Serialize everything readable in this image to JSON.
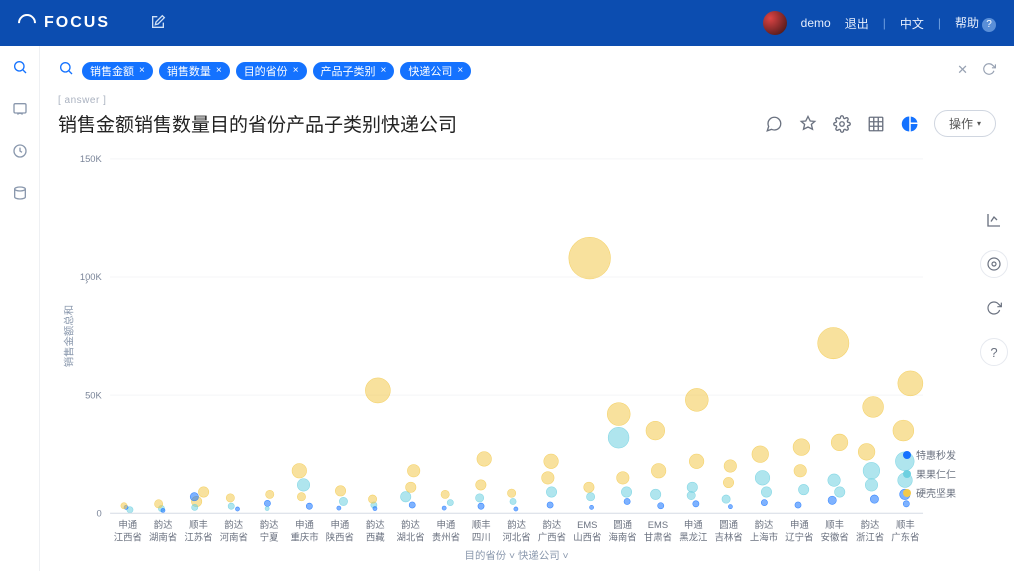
{
  "header": {
    "brand": "FOCUS",
    "user": "demo",
    "logout": "退出",
    "lang": "中文",
    "help": "帮助"
  },
  "search": {
    "pills": [
      "销售金额",
      "销售数量",
      "目的省份",
      "产品子类别",
      "快递公司"
    ],
    "breadcrumb": "[ answer ]"
  },
  "title": "销售金额销售数量目的省份产品子类别快递公司",
  "ops_label": "操作",
  "chart": {
    "type": "scatter",
    "y_axis_label": "销售金额总和",
    "x_axis_label_1": "目的省份",
    "x_axis_label_2": "快递公司",
    "ylim": [
      0,
      150000
    ],
    "yticks": [
      0,
      50000,
      100000,
      150000
    ],
    "ytick_labels": [
      "0",
      "50K",
      "100K",
      "150K"
    ],
    "background_color": "#ffffff",
    "grid_color": "#f0f2f5",
    "series": [
      {
        "name": "特惠秒发",
        "color": "#1472ff"
      },
      {
        "name": "果果仁仁",
        "color": "#6ed0e0"
      },
      {
        "name": "硬壳坚果",
        "color": "#f2c94c"
      }
    ],
    "categories": [
      {
        "province": "江西省",
        "shippers": [
          "申通"
        ]
      },
      {
        "province": "湖南省",
        "shippers": [
          "韵达"
        ]
      },
      {
        "province": "江苏省",
        "shippers": [
          "顺丰"
        ]
      },
      {
        "province": "河南省",
        "shippers": [
          "韵达"
        ]
      },
      {
        "province": "宁夏",
        "shippers": [
          "韵达"
        ]
      },
      {
        "province": "重庆市",
        "shippers": [
          "申通"
        ]
      },
      {
        "province": "陕西省",
        "shippers": [
          "申通"
        ]
      },
      {
        "province": "西藏",
        "shippers": [
          "韵达"
        ]
      },
      {
        "province": "湖北省",
        "shippers": [
          "韵达"
        ]
      },
      {
        "province": "贵州省",
        "shippers": [
          "申通"
        ]
      },
      {
        "province": "四川",
        "shippers": [
          "顺丰"
        ]
      },
      {
        "province": "河北省",
        "shippers": [
          "韵达"
        ]
      },
      {
        "province": "广西省",
        "shippers": [
          "韵达"
        ]
      },
      {
        "province": "山西省",
        "shippers": [
          "EMS"
        ]
      },
      {
        "province": "海南省",
        "shippers": [
          "圆通"
        ]
      },
      {
        "province": "甘肃省",
        "shippers": [
          "EMS"
        ]
      },
      {
        "province": "黑龙江",
        "shippers": [
          "申通"
        ]
      },
      {
        "province": "吉林省",
        "shippers": [
          "圆通"
        ]
      },
      {
        "province": "上海市",
        "shippers": [
          "韵达"
        ]
      },
      {
        "province": "辽宁省",
        "shippers": [
          "申通"
        ]
      },
      {
        "province": "安徽省",
        "shippers": [
          "顺丰"
        ]
      },
      {
        "province": "浙江省",
        "shippers": [
          "韵达"
        ]
      },
      {
        "province": "广东省",
        "shippers": [
          "顺丰"
        ]
      }
    ],
    "points": [
      {
        "cat": 0,
        "y": 1500,
        "r": 3,
        "s": 1
      },
      {
        "cat": 0,
        "y": 2500,
        "r": 2,
        "s": 0
      },
      {
        "cat": 0,
        "y": 3200,
        "r": 3,
        "s": 2
      },
      {
        "cat": 1,
        "y": 2000,
        "r": 3,
        "s": 1
      },
      {
        "cat": 1,
        "y": 4000,
        "r": 4,
        "s": 2
      },
      {
        "cat": 1,
        "y": 1200,
        "r": 2,
        "s": 0
      },
      {
        "cat": 2,
        "y": 5000,
        "r": 5,
        "s": 2
      },
      {
        "cat": 2,
        "y": 2500,
        "r": 3,
        "s": 1
      },
      {
        "cat": 2,
        "y": 7000,
        "r": 4,
        "s": 0
      },
      {
        "cat": 2,
        "y": 9000,
        "r": 5,
        "s": 2
      },
      {
        "cat": 3,
        "y": 3000,
        "r": 3,
        "s": 1
      },
      {
        "cat": 3,
        "y": 6500,
        "r": 4,
        "s": 2
      },
      {
        "cat": 3,
        "y": 1800,
        "r": 2,
        "s": 0
      },
      {
        "cat": 4,
        "y": 4200,
        "r": 3,
        "s": 0
      },
      {
        "cat": 4,
        "y": 8000,
        "r": 4,
        "s": 2
      },
      {
        "cat": 4,
        "y": 2000,
        "r": 2,
        "s": 1
      },
      {
        "cat": 5,
        "y": 12000,
        "r": 6,
        "s": 1
      },
      {
        "cat": 5,
        "y": 7000,
        "r": 4,
        "s": 2
      },
      {
        "cat": 5,
        "y": 3000,
        "r": 3,
        "s": 0
      },
      {
        "cat": 5,
        "y": 18000,
        "r": 7,
        "s": 2
      },
      {
        "cat": 6,
        "y": 5000,
        "r": 4,
        "s": 1
      },
      {
        "cat": 6,
        "y": 9500,
        "r": 5,
        "s": 2
      },
      {
        "cat": 6,
        "y": 2200,
        "r": 2,
        "s": 0
      },
      {
        "cat": 7,
        "y": 3500,
        "r": 3,
        "s": 1
      },
      {
        "cat": 7,
        "y": 52000,
        "r": 12,
        "s": 2
      },
      {
        "cat": 7,
        "y": 6000,
        "r": 4,
        "s": 2
      },
      {
        "cat": 7,
        "y": 2000,
        "r": 2,
        "s": 0
      },
      {
        "cat": 8,
        "y": 7000,
        "r": 5,
        "s": 1
      },
      {
        "cat": 8,
        "y": 11000,
        "r": 5,
        "s": 2
      },
      {
        "cat": 8,
        "y": 18000,
        "r": 6,
        "s": 2
      },
      {
        "cat": 8,
        "y": 3500,
        "r": 3,
        "s": 0
      },
      {
        "cat": 9,
        "y": 4500,
        "r": 3,
        "s": 1
      },
      {
        "cat": 9,
        "y": 8000,
        "r": 4,
        "s": 2
      },
      {
        "cat": 9,
        "y": 2200,
        "r": 2,
        "s": 0
      },
      {
        "cat": 10,
        "y": 6500,
        "r": 4,
        "s": 1
      },
      {
        "cat": 10,
        "y": 12000,
        "r": 5,
        "s": 2
      },
      {
        "cat": 10,
        "y": 23000,
        "r": 7,
        "s": 2
      },
      {
        "cat": 10,
        "y": 3000,
        "r": 3,
        "s": 0
      },
      {
        "cat": 11,
        "y": 5000,
        "r": 3,
        "s": 1
      },
      {
        "cat": 11,
        "y": 8500,
        "r": 4,
        "s": 2
      },
      {
        "cat": 11,
        "y": 1800,
        "r": 2,
        "s": 0
      },
      {
        "cat": 12,
        "y": 9000,
        "r": 5,
        "s": 1
      },
      {
        "cat": 12,
        "y": 15000,
        "r": 6,
        "s": 2
      },
      {
        "cat": 12,
        "y": 3500,
        "r": 3,
        "s": 0
      },
      {
        "cat": 12,
        "y": 22000,
        "r": 7,
        "s": 2
      },
      {
        "cat": 13,
        "y": 7000,
        "r": 4,
        "s": 1
      },
      {
        "cat": 13,
        "y": 108000,
        "r": 20,
        "s": 2
      },
      {
        "cat": 13,
        "y": 11000,
        "r": 5,
        "s": 2
      },
      {
        "cat": 13,
        "y": 2500,
        "r": 2,
        "s": 0
      },
      {
        "cat": 14,
        "y": 32000,
        "r": 10,
        "s": 1
      },
      {
        "cat": 14,
        "y": 15000,
        "r": 6,
        "s": 2
      },
      {
        "cat": 14,
        "y": 42000,
        "r": 11,
        "s": 2
      },
      {
        "cat": 14,
        "y": 5000,
        "r": 3,
        "s": 0
      },
      {
        "cat": 14,
        "y": 9000,
        "r": 5,
        "s": 1
      },
      {
        "cat": 15,
        "y": 8000,
        "r": 5,
        "s": 1
      },
      {
        "cat": 15,
        "y": 18000,
        "r": 7,
        "s": 2
      },
      {
        "cat": 15,
        "y": 35000,
        "r": 9,
        "s": 2
      },
      {
        "cat": 15,
        "y": 3200,
        "r": 3,
        "s": 0
      },
      {
        "cat": 16,
        "y": 11000,
        "r": 5,
        "s": 1
      },
      {
        "cat": 16,
        "y": 48000,
        "r": 11,
        "s": 2
      },
      {
        "cat": 16,
        "y": 22000,
        "r": 7,
        "s": 2
      },
      {
        "cat": 16,
        "y": 4000,
        "r": 3,
        "s": 0
      },
      {
        "cat": 16,
        "y": 7500,
        "r": 4,
        "s": 1
      },
      {
        "cat": 17,
        "y": 6000,
        "r": 4,
        "s": 1
      },
      {
        "cat": 17,
        "y": 13000,
        "r": 5,
        "s": 2
      },
      {
        "cat": 17,
        "y": 2800,
        "r": 2,
        "s": 0
      },
      {
        "cat": 17,
        "y": 20000,
        "r": 6,
        "s": 2
      },
      {
        "cat": 18,
        "y": 15000,
        "r": 7,
        "s": 1
      },
      {
        "cat": 18,
        "y": 25000,
        "r": 8,
        "s": 2
      },
      {
        "cat": 18,
        "y": 4500,
        "r": 3,
        "s": 0
      },
      {
        "cat": 18,
        "y": 9000,
        "r": 5,
        "s": 1
      },
      {
        "cat": 19,
        "y": 10000,
        "r": 5,
        "s": 1
      },
      {
        "cat": 19,
        "y": 18000,
        "r": 6,
        "s": 2
      },
      {
        "cat": 19,
        "y": 28000,
        "r": 8,
        "s": 2
      },
      {
        "cat": 19,
        "y": 3500,
        "r": 3,
        "s": 0
      },
      {
        "cat": 20,
        "y": 72000,
        "r": 15,
        "s": 2
      },
      {
        "cat": 20,
        "y": 14000,
        "r": 6,
        "s": 1
      },
      {
        "cat": 20,
        "y": 30000,
        "r": 8,
        "s": 2
      },
      {
        "cat": 20,
        "y": 5500,
        "r": 4,
        "s": 0
      },
      {
        "cat": 20,
        "y": 9000,
        "r": 5,
        "s": 1
      },
      {
        "cat": 21,
        "y": 18000,
        "r": 8,
        "s": 1
      },
      {
        "cat": 21,
        "y": 26000,
        "r": 8,
        "s": 2
      },
      {
        "cat": 21,
        "y": 45000,
        "r": 10,
        "s": 2
      },
      {
        "cat": 21,
        "y": 6000,
        "r": 4,
        "s": 0
      },
      {
        "cat": 21,
        "y": 12000,
        "r": 6,
        "s": 1
      },
      {
        "cat": 22,
        "y": 22000,
        "r": 9,
        "s": 1
      },
      {
        "cat": 22,
        "y": 35000,
        "r": 10,
        "s": 2
      },
      {
        "cat": 22,
        "y": 55000,
        "r": 12,
        "s": 2
      },
      {
        "cat": 22,
        "y": 8000,
        "r": 5,
        "s": 0
      },
      {
        "cat": 22,
        "y": 14000,
        "r": 7,
        "s": 1
      },
      {
        "cat": 22,
        "y": 4000,
        "r": 3,
        "s": 0
      }
    ]
  }
}
